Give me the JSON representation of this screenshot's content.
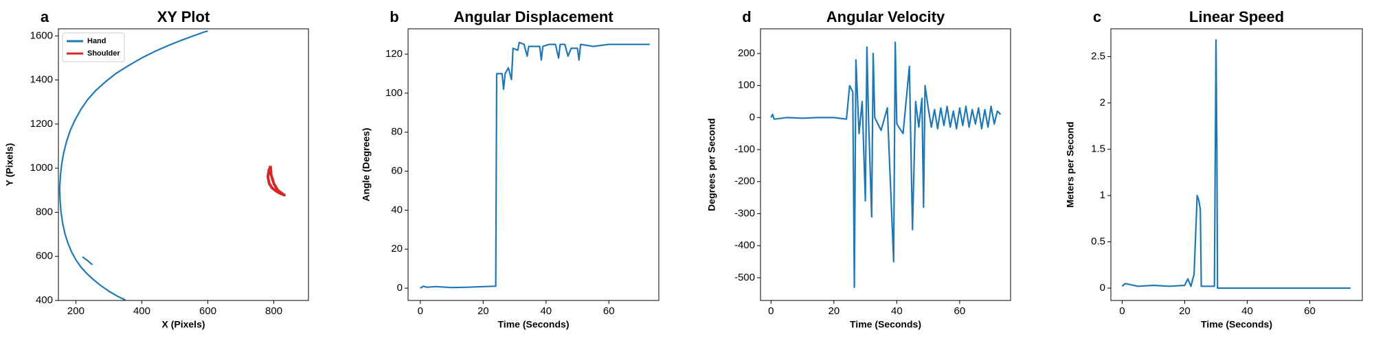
{
  "chart_data": [
    {
      "type": "line",
      "panel": "a",
      "title": "XY Plot",
      "xlabel": "X (Pixels)",
      "ylabel": "Y (Pixels)",
      "xlim": [
        147,
        905
      ],
      "ylim": [
        400,
        1632
      ],
      "xticks": [
        200,
        400,
        600,
        800
      ],
      "yticks": [
        400,
        600,
        800,
        1000,
        1200,
        1400,
        1600
      ],
      "legend": "upper left",
      "series": [
        {
          "name": "Hand",
          "color": "#1f77b4",
          "x": [
            600,
            590,
            560,
            520,
            480,
            440,
            400,
            360,
            320,
            290,
            260,
            235,
            215,
            198,
            183,
            172,
            163,
            157,
            153,
            151,
            152,
            155,
            160,
            167,
            176,
            187,
            200,
            215,
            232,
            252,
            275,
            300,
            325,
            350,
            null,
            220,
            236,
            250
          ],
          "values": [
            1622,
            1618,
            1602,
            1580,
            1556,
            1530,
            1500,
            1466,
            1428,
            1392,
            1352,
            1310,
            1266,
            1220,
            1172,
            1122,
            1070,
            1018,
            964,
            910,
            856,
            802,
            750,
            702,
            660,
            620,
            584,
            552,
            524,
            496,
            468,
            442,
            420,
            402,
            null,
            598,
            580,
            562
          ]
        },
        {
          "name": "Shoulder",
          "color": "#d62728",
          "x": [
            790,
            785,
            782,
            786,
            795,
            808,
            820,
            832,
            825,
            812,
            800,
            792,
            790
          ],
          "values": [
            1010,
            990,
            960,
            930,
            910,
            895,
            885,
            878,
            885,
            900,
            930,
            970,
            1010
          ]
        }
      ]
    },
    {
      "type": "line",
      "panel": "b",
      "title": "Angular Displacement",
      "xlabel": "Time (Seconds)",
      "ylabel": "Angle (Degrees)",
      "xlim": [
        -3.9,
        75.9
      ],
      "ylim": [
        -6.3,
        133
      ],
      "xticks": [
        0,
        20,
        40,
        60
      ],
      "yticks": [
        0,
        20,
        40,
        60,
        80,
        100,
        120
      ],
      "series": [
        {
          "color": "#1f77b4",
          "x": [
            0,
            1,
            2,
            5,
            10,
            15,
            20,
            24,
            24.3,
            26,
            26.5,
            27,
            28,
            29,
            29.5,
            31,
            31.5,
            33,
            34,
            34.5,
            38,
            38.5,
            39,
            41,
            43,
            44,
            44.5,
            46,
            47,
            48,
            50,
            50.5,
            51,
            55,
            60,
            65,
            70,
            73
          ],
          "values": [
            0,
            1,
            0.5,
            0.8,
            0.3,
            0.5,
            0.8,
            1,
            110,
            110,
            102,
            110,
            113,
            107,
            123,
            122,
            126,
            125,
            119,
            124,
            124,
            117,
            124,
            125,
            125,
            118,
            125,
            125,
            119,
            123,
            123,
            117,
            125,
            124,
            125,
            125,
            125,
            125
          ]
        }
      ]
    },
    {
      "type": "line",
      "panel": "d",
      "title": "Angular Velocity",
      "xlabel": "Time (Seconds)",
      "ylabel": "Degrees per Second",
      "xlim": [
        -3.35,
        76.2
      ],
      "ylim": [
        -571,
        277
      ],
      "xticks": [
        0,
        20,
        40,
        60
      ],
      "yticks": [
        -500,
        -400,
        -300,
        -200,
        -100,
        0,
        100,
        200
      ],
      "series": [
        {
          "color": "#1f77b4",
          "x": [
            0,
            0.5,
            1,
            5,
            10,
            15,
            20,
            24,
            25,
            26,
            26.5,
            27,
            28,
            29,
            30,
            30.5,
            31,
            32,
            32.5,
            33,
            35,
            37,
            39,
            39.5,
            40,
            42,
            44,
            45,
            46,
            47,
            48,
            48.5,
            49,
            50,
            51,
            52,
            53,
            54,
            55,
            56,
            57,
            58,
            59,
            60,
            61,
            62,
            63,
            64,
            65,
            66,
            67,
            68,
            69,
            70,
            71,
            72,
            73
          ],
          "values": [
            0,
            10,
            -5,
            0,
            -2,
            0,
            0,
            -5,
            100,
            80,
            -530,
            180,
            -50,
            50,
            -260,
            220,
            0,
            -310,
            200,
            0,
            -40,
            30,
            -450,
            235,
            -20,
            -50,
            160,
            -350,
            50,
            -30,
            60,
            -280,
            100,
            30,
            -30,
            25,
            -35,
            30,
            -25,
            35,
            -30,
            20,
            -35,
            30,
            -25,
            35,
            -30,
            25,
            -20,
            30,
            -35,
            25,
            -30,
            35,
            -20,
            20,
            10
          ]
        }
      ]
    },
    {
      "type": "line",
      "panel": "c",
      "title": "Linear Speed",
      "xlabel": "Time (Seconds)",
      "ylabel": "Meters per Second",
      "xlim": [
        -3.6,
        76.8
      ],
      "ylim": [
        -0.133,
        2.8
      ],
      "xticks": [
        0,
        20,
        40,
        60
      ],
      "yticks": [
        0.0,
        0.5,
        1.0,
        1.5,
        2.0,
        2.5
      ],
      "series": [
        {
          "color": "#1f77b4",
          "x": [
            0,
            1,
            5,
            10,
            15,
            20,
            21,
            22,
            23,
            24,
            24.5,
            25,
            25.3,
            28,
            29.5,
            30,
            30.3,
            30.5,
            73
          ],
          "values": [
            0.02,
            0.05,
            0.02,
            0.03,
            0.02,
            0.03,
            0.1,
            0.02,
            0.15,
            1.0,
            0.95,
            0.85,
            0.02,
            0.02,
            0.02,
            2.68,
            1.5,
            0,
            0
          ]
        }
      ]
    }
  ]
}
